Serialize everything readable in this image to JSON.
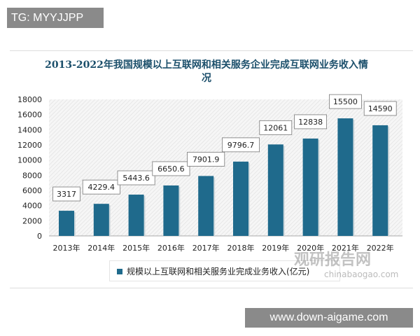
{
  "watermark_top": "TG: MYYJJPP",
  "watermark_bottom": "www.down-aigame.com",
  "logo_watermark": {
    "name": "观研报告网",
    "url_text": "chinabaogao.com"
  },
  "chart_data": {
    "type": "bar",
    "title": "2013-2022年我国规模以上互联网和相关服务企业完成互联网业务收入情况",
    "categories": [
      "2013年",
      "2014年",
      "2015年",
      "2016年",
      "2017年",
      "2018年",
      "2019年",
      "2020年",
      "2021年",
      "2022年"
    ],
    "series": [
      {
        "name": "规模以上互联网和相关服务业完成业务收入(亿元)",
        "values": [
          3317,
          4229.4,
          5443.6,
          6650.6,
          7901.9,
          9796.7,
          12061,
          12838,
          15500,
          14590
        ],
        "labels": [
          "3317",
          "4229.4",
          "5443.6",
          "6650.6",
          "7901.9",
          "9796.7",
          "12061",
          "12838",
          "15500",
          "14590"
        ]
      }
    ],
    "ylim": [
      0,
      18000
    ],
    "yticks": [
      0,
      2000,
      4000,
      6000,
      8000,
      10000,
      12000,
      14000,
      16000,
      18000
    ],
    "grid": false,
    "legend": "bottom",
    "bar_color": "#1f6a8c"
  }
}
